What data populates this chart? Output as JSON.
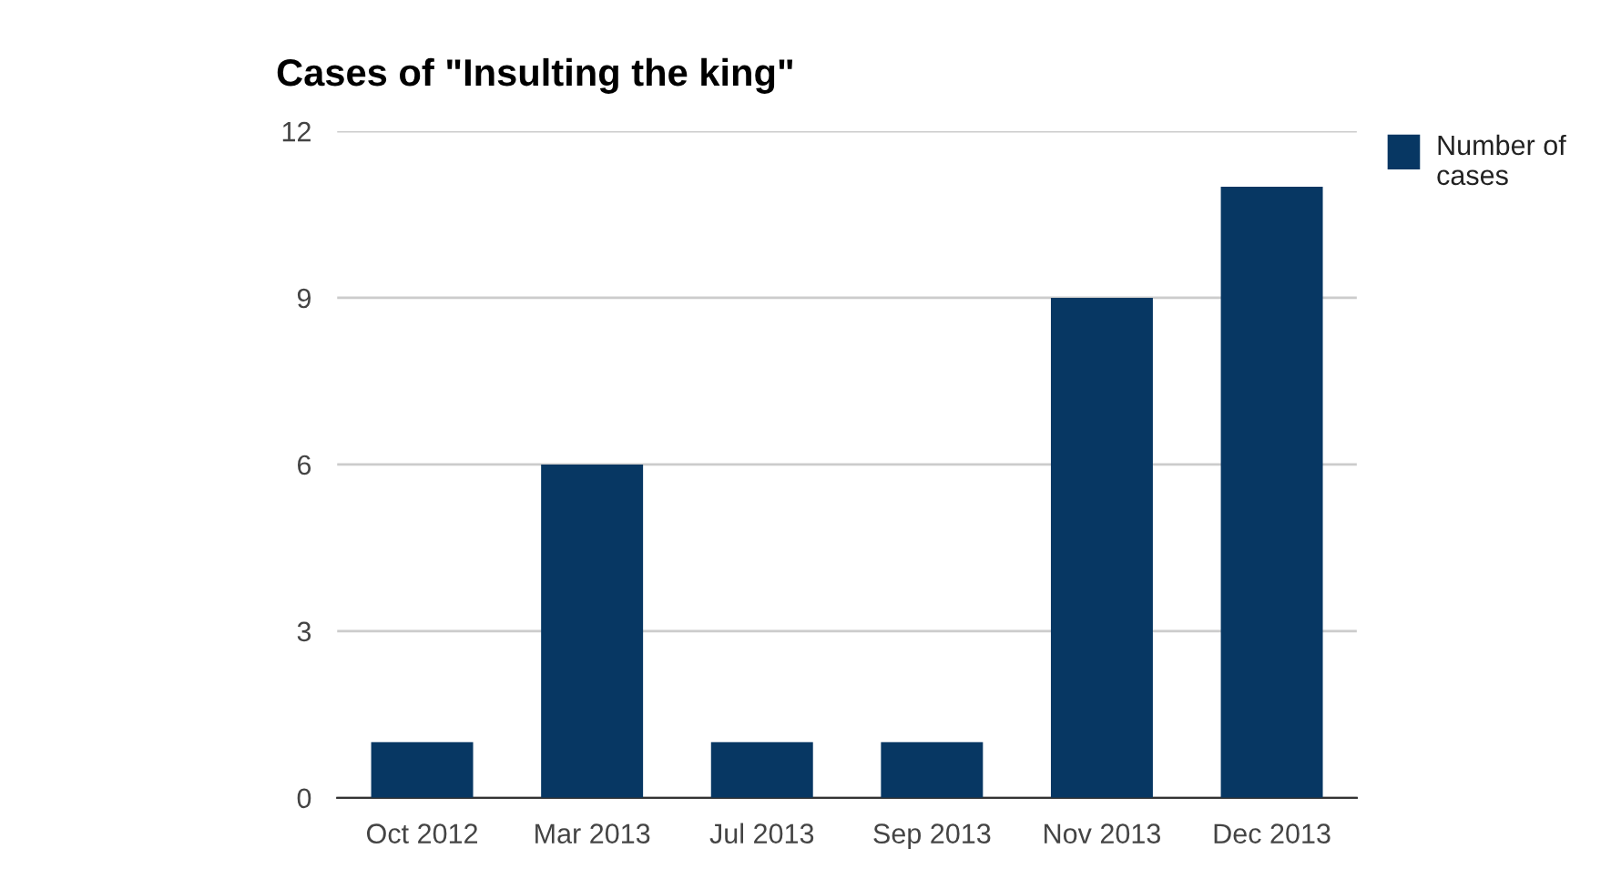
{
  "chart_data": {
    "type": "bar",
    "title": "Cases of \"Insulting the king\"",
    "categories": [
      "Oct 2012",
      "Mar 2013",
      "Jul 2013",
      "Sep 2013",
      "Nov 2013",
      "Dec 2013"
    ],
    "series": [
      {
        "name": "Number of cases",
        "color": "#073763",
        "values": [
          1,
          6,
          1,
          1,
          9,
          11
        ]
      }
    ],
    "ylim": [
      0,
      12
    ],
    "yticks": [
      0,
      3,
      6,
      9,
      12
    ],
    "grid": "y",
    "legend": "top right"
  }
}
